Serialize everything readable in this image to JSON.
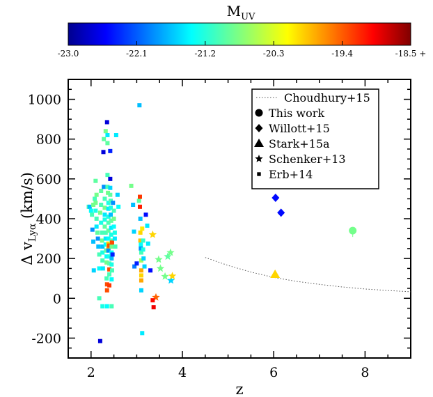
{
  "colorbar": {
    "title_main": "M",
    "title_sub": "UV",
    "ticks": [
      "-23.0",
      "-22.1",
      "-21.2",
      "-20.3",
      "-19.4",
      "-18.5 +"
    ],
    "range": [
      -23.0,
      -18.5
    ]
  },
  "chart_data": {
    "type": "scatter",
    "xlabel": "z",
    "ylabel_main": "Δ v",
    "ylabel_sub": "Lyα",
    "ylabel_unit": " (km/s)",
    "xlim": [
      1.5,
      9.0
    ],
    "ylim": [
      -300,
      1100
    ],
    "x_ticks": [
      2,
      4,
      6,
      8
    ],
    "y_ticks": [
      -200,
      0,
      200,
      400,
      600,
      800,
      1000
    ],
    "grid": false,
    "legend_position": "top-right",
    "legend": [
      {
        "label": "Choudhury+15",
        "marker": "dotted-line"
      },
      {
        "label": "This work",
        "marker": "circle"
      },
      {
        "label": "Willott+15",
        "marker": "diamond"
      },
      {
        "label": "Stark+15a",
        "marker": "triangle"
      },
      {
        "label": "Schenker+13",
        "marker": "star"
      },
      {
        "label": "Erb+14",
        "marker": "square"
      }
    ],
    "series": [
      {
        "source": "Choudhury+15",
        "style": "dotted-line",
        "points": [
          [
            4.5,
            205
          ],
          [
            5.0,
            165
          ],
          [
            5.5,
            132
          ],
          [
            6.0,
            105
          ],
          [
            6.5,
            85
          ],
          [
            7.0,
            70
          ],
          [
            7.5,
            57
          ],
          [
            8.0,
            47
          ],
          [
            8.5,
            39
          ],
          [
            9.0,
            33
          ]
        ]
      },
      {
        "source": "This work",
        "marker": "circle",
        "points": [
          [
            7.73,
            340,
            -20.8
          ]
        ]
      },
      {
        "source": "Willott+15",
        "marker": "diamond",
        "points": [
          [
            6.04,
            505,
            -22.4
          ],
          [
            6.16,
            430,
            -22.4
          ]
        ]
      },
      {
        "source": "Stark+15a",
        "marker": "triangle",
        "points": [
          [
            6.03,
            120,
            -20.0
          ]
        ]
      },
      {
        "source": "Schenker+13",
        "marker": "star",
        "points": [
          [
            3.35,
            320,
            -20.0
          ],
          [
            3.48,
            195,
            -20.8
          ],
          [
            3.52,
            150,
            -20.8
          ],
          [
            3.62,
            110,
            -20.8
          ],
          [
            3.68,
            210,
            -20.9
          ],
          [
            3.74,
            230,
            -20.8
          ],
          [
            3.75,
            90,
            -21.5
          ],
          [
            3.78,
            112,
            -20.0
          ],
          [
            3.42,
            5,
            -19.5
          ]
        ]
      },
      {
        "source": "Erb+14",
        "marker": "square",
        "points": [
          [
            1.95,
            460,
            -21.0
          ],
          [
            1.97,
            460,
            -21.6
          ],
          [
            2.0,
            440,
            -21.3
          ],
          [
            2.02,
            420,
            -21.0
          ],
          [
            2.05,
            470,
            -20.8
          ],
          [
            2.03,
            345,
            -21.8
          ],
          [
            2.05,
            285,
            -21.6
          ],
          [
            2.06,
            140,
            -21.5
          ],
          [
            2.08,
            500,
            -21.0
          ],
          [
            2.1,
            480,
            -20.8
          ],
          [
            2.1,
            590,
            -20.9
          ],
          [
            2.12,
            520,
            -20.8
          ],
          [
            2.1,
            440,
            -21.2
          ],
          [
            2.12,
            400,
            -21.0
          ],
          [
            2.12,
            360,
            -21.4
          ],
          [
            2.14,
            330,
            -20.9
          ],
          [
            2.15,
            300,
            -21.8
          ],
          [
            2.16,
            260,
            -21.6
          ],
          [
            2.18,
            220,
            -21.0
          ],
          [
            2.18,
            150,
            -21.3
          ],
          [
            2.18,
            0,
            -21.0
          ],
          [
            2.2,
            -215,
            -22.6
          ],
          [
            2.2,
            430,
            -20.8
          ],
          [
            2.22,
            470,
            -21.0
          ],
          [
            2.22,
            540,
            -20.9
          ],
          [
            2.22,
            380,
            -21.2
          ],
          [
            2.24,
            330,
            -21.0
          ],
          [
            2.24,
            290,
            -20.8
          ],
          [
            2.25,
            260,
            -21.6
          ],
          [
            2.25,
            230,
            -21.2
          ],
          [
            2.25,
            190,
            -21.0
          ],
          [
            2.26,
            150,
            -21.4
          ],
          [
            2.25,
            -40,
            -21.2
          ],
          [
            2.27,
            735,
            -22.6
          ],
          [
            2.28,
            800,
            -20.9
          ],
          [
            2.28,
            560,
            -21.8
          ],
          [
            2.3,
            500,
            -21.0
          ],
          [
            2.3,
            455,
            -20.8
          ],
          [
            2.3,
            420,
            -21.4
          ],
          [
            2.3,
            395,
            -21.2
          ],
          [
            2.3,
            360,
            -20.9
          ],
          [
            2.32,
            330,
            -21.0
          ],
          [
            2.32,
            300,
            -21.4
          ],
          [
            2.32,
            270,
            -21.3
          ],
          [
            2.33,
            240,
            -20.9
          ],
          [
            2.34,
            210,
            -21.3
          ],
          [
            2.34,
            180,
            -20.8
          ],
          [
            2.34,
            100,
            -21.0
          ],
          [
            2.35,
            70,
            -19.4
          ],
          [
            2.35,
            40,
            -19.4
          ],
          [
            2.35,
            -40,
            -21.3
          ],
          [
            2.32,
            840,
            -20.8
          ],
          [
            2.35,
            885,
            -22.6
          ],
          [
            2.36,
            820,
            -21.4
          ],
          [
            2.36,
            780,
            -20.9
          ],
          [
            2.36,
            620,
            -21.0
          ],
          [
            2.36,
            560,
            -21.0
          ],
          [
            2.37,
            530,
            -20.8
          ],
          [
            2.38,
            480,
            -21.2
          ],
          [
            2.38,
            450,
            -21.4
          ],
          [
            2.38,
            410,
            -21.2
          ],
          [
            2.38,
            380,
            -21.0
          ],
          [
            2.38,
            340,
            -20.9
          ],
          [
            2.38,
            300,
            -21.3
          ],
          [
            2.38,
            275,
            -20.0
          ],
          [
            2.38,
            255,
            -19.8
          ],
          [
            2.38,
            240,
            -21.8
          ],
          [
            2.4,
            265,
            -19.4
          ],
          [
            2.4,
            210,
            -21.2
          ],
          [
            2.4,
            175,
            -20.9
          ],
          [
            2.4,
            145,
            -19.4
          ],
          [
            2.4,
            120,
            -21.0
          ],
          [
            2.4,
            65,
            -19.3
          ],
          [
            2.42,
            740,
            -22.3
          ],
          [
            2.42,
            600,
            -22.6
          ],
          [
            2.42,
            555,
            -21.5
          ],
          [
            2.42,
            520,
            -20.9
          ],
          [
            2.43,
            490,
            -21.0
          ],
          [
            2.43,
            455,
            -21.2
          ],
          [
            2.43,
            420,
            -21.6
          ],
          [
            2.44,
            390,
            -20.9
          ],
          [
            2.44,
            355,
            -21.4
          ],
          [
            2.44,
            320,
            -21.2
          ],
          [
            2.45,
            290,
            -21.0
          ],
          [
            2.45,
            260,
            -20.8
          ],
          [
            2.45,
            230,
            -21.3
          ],
          [
            2.45,
            200,
            -21.6
          ],
          [
            2.45,
            170,
            -21.2
          ],
          [
            2.46,
            140,
            -21.0
          ],
          [
            2.45,
            95,
            -21.3
          ],
          [
            2.45,
            -40,
            -21.0
          ],
          [
            2.46,
            280,
            -19.4
          ],
          [
            2.47,
            220,
            -22.3
          ],
          [
            2.48,
            480,
            -21.8
          ],
          [
            2.5,
            440,
            -21.0
          ],
          [
            2.5,
            400,
            -20.8
          ],
          [
            2.5,
            360,
            -21.3
          ],
          [
            2.52,
            330,
            -21.2
          ],
          [
            2.52,
            300,
            -21.4
          ],
          [
            2.53,
            260,
            -21.0
          ],
          [
            2.55,
            820,
            -21.4
          ],
          [
            2.58,
            520,
            -21.5
          ],
          [
            2.6,
            460,
            -21.3
          ],
          [
            2.88,
            565,
            -20.8
          ],
          [
            2.92,
            470,
            -21.6
          ],
          [
            2.94,
            335,
            -21.5
          ],
          [
            2.95,
            160,
            -21.9
          ],
          [
            3.0,
            175,
            -22.3
          ],
          [
            3.05,
            490,
            -20.9
          ],
          [
            3.06,
            970,
            -21.6
          ],
          [
            3.07,
            510,
            -19.3
          ],
          [
            3.07,
            460,
            -19.2
          ],
          [
            3.08,
            400,
            -21.6
          ],
          [
            3.08,
            330,
            -20.0
          ],
          [
            3.08,
            290,
            -19.9
          ],
          [
            3.09,
            270,
            -21.3
          ],
          [
            3.09,
            250,
            -21.8
          ],
          [
            3.1,
            230,
            -21.0
          ],
          [
            3.1,
            190,
            -20.6
          ],
          [
            3.1,
            140,
            -19.8
          ],
          [
            3.1,
            115,
            -20.0
          ],
          [
            3.1,
            90,
            -19.8
          ],
          [
            3.1,
            40,
            -21.5
          ],
          [
            3.12,
            -175,
            -21.4
          ],
          [
            3.12,
            350,
            -20.1
          ],
          [
            3.14,
            290,
            -21.1
          ],
          [
            3.14,
            245,
            -21.2
          ],
          [
            3.15,
            200,
            -21.5
          ],
          [
            3.17,
            160,
            -21.5
          ],
          [
            3.2,
            420,
            -22.4
          ],
          [
            3.23,
            365,
            -21.4
          ],
          [
            3.25,
            275,
            -21.4
          ],
          [
            3.3,
            140,
            -22.4
          ],
          [
            3.35,
            -10,
            -19.1
          ],
          [
            3.37,
            -45,
            -19.0
          ]
        ]
      }
    ]
  }
}
